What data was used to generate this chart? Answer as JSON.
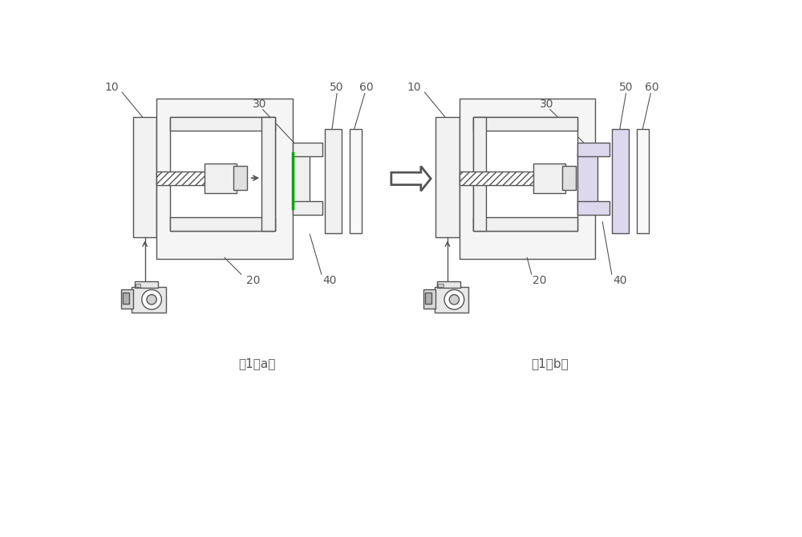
{
  "fig_width": 10.0,
  "fig_height": 6.7,
  "bg_color": "#ffffff",
  "line_color": "#555555",
  "green_line": "#00aa00",
  "light_fill": "#f0f0f0",
  "white_fill": "#ffffff",
  "gray_fill": "#e0e0e0",
  "purple_fill": "#ddd8ee",
  "label_a": "图1（a）",
  "label_b": "图1（b）",
  "font_size_label": 10,
  "font_size_caption": 11
}
